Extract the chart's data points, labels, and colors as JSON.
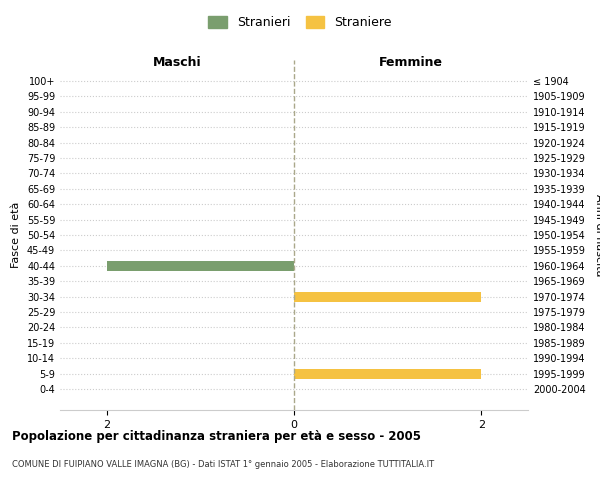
{
  "age_groups": [
    "100+",
    "95-99",
    "90-94",
    "85-89",
    "80-84",
    "75-79",
    "70-74",
    "65-69",
    "60-64",
    "55-59",
    "50-54",
    "45-49",
    "40-44",
    "35-39",
    "30-34",
    "25-29",
    "20-24",
    "15-19",
    "10-14",
    "5-9",
    "0-4"
  ],
  "birth_years": [
    "≤ 1904",
    "1905-1909",
    "1910-1914",
    "1915-1919",
    "1920-1924",
    "1925-1929",
    "1930-1934",
    "1935-1939",
    "1940-1944",
    "1945-1949",
    "1950-1954",
    "1955-1959",
    "1960-1964",
    "1965-1969",
    "1970-1974",
    "1975-1979",
    "1980-1984",
    "1985-1989",
    "1990-1994",
    "1995-1999",
    "2000-2004"
  ],
  "males": [
    0,
    0,
    0,
    0,
    0,
    0,
    0,
    0,
    0,
    0,
    0,
    0,
    2,
    0,
    0,
    0,
    0,
    0,
    0,
    0,
    0
  ],
  "females": [
    0,
    0,
    0,
    0,
    0,
    0,
    0,
    0,
    0,
    0,
    0,
    0,
    0,
    0,
    2,
    0,
    0,
    0,
    0,
    2,
    0
  ],
  "male_color": "#7a9e6e",
  "female_color": "#f5c242",
  "title_main": "Popolazione per cittadinanza straniera per età e sesso - 2005",
  "title_sub": "COMUNE DI FUIPIANO VALLE IMAGNA (BG) - Dati ISTAT 1° gennaio 2005 - Elaborazione TUTTITALIA.IT",
  "xlabel_left": "Maschi",
  "xlabel_right": "Femmine",
  "ylabel_left": "Fasce di età",
  "ylabel_right": "Anni di nascita",
  "legend_male": "Stranieri",
  "legend_female": "Straniere",
  "xlim": 2.5,
  "xticks": [
    -2,
    0,
    2
  ],
  "xticklabels": [
    "2",
    "0",
    "2"
  ],
  "background_color": "#ffffff",
  "grid_color": "#cccccc"
}
